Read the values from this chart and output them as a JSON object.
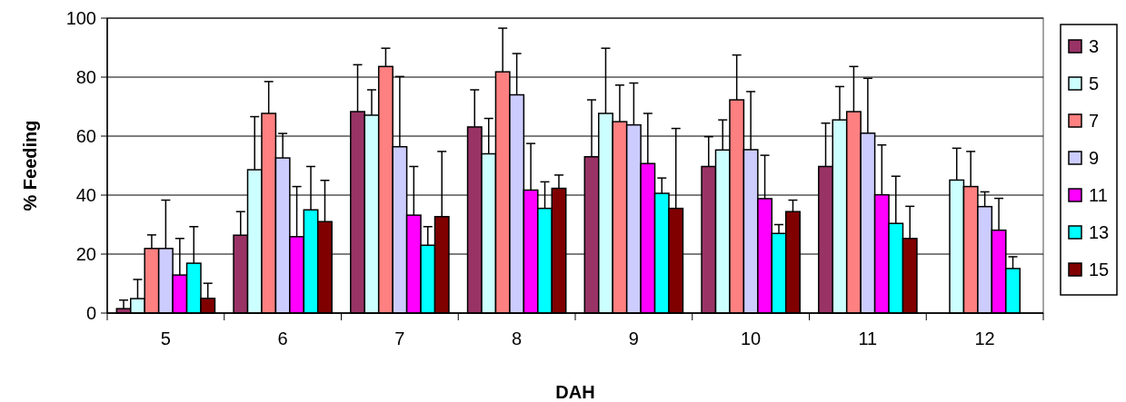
{
  "chart_data": {
    "type": "bar",
    "xlabel": "DAH",
    "ylabel": "% Feeding",
    "categories": [
      "5",
      "6",
      "7",
      "8",
      "9",
      "10",
      "11",
      "12"
    ],
    "ylim": [
      0,
      100
    ],
    "yticks": [
      0,
      20,
      40,
      60,
      80,
      100
    ],
    "grid": "y",
    "legend": "right",
    "series": [
      {
        "name": "3",
        "color": "#993366",
        "values": [
          1.5,
          26.4,
          68.3,
          63.1,
          53,
          49.7,
          49.7,
          null
        ],
        "errors": [
          [
            1.5,
            4.4
          ],
          [
            26.4,
            34.4
          ],
          [
            68.3,
            84.2
          ],
          [
            63.1,
            75.7
          ],
          [
            53,
            72.3
          ],
          [
            49.7,
            59.8
          ],
          [
            49.7,
            64.4
          ],
          null
        ]
      },
      {
        "name": "5",
        "color": "#ccffff",
        "values": [
          4.9,
          48.6,
          67.1,
          54,
          67.7,
          55.3,
          65.5,
          45.1
        ],
        "errors": [
          [
            4.9,
            11.4
          ],
          [
            48.6,
            66.6
          ],
          [
            67.1,
            75.7
          ],
          [
            54,
            66
          ],
          [
            67.7,
            89.8
          ],
          [
            55.3,
            65.5
          ],
          [
            65.5,
            76.8
          ],
          [
            45.1,
            55.9
          ]
        ]
      },
      {
        "name": "7",
        "color": "#ff8080",
        "values": [
          21.9,
          67.7,
          83.6,
          81.8,
          64.9,
          72.3,
          68.3,
          42.9
        ],
        "errors": [
          [
            21.9,
            26.5
          ],
          [
            67.7,
            78.5
          ],
          [
            83.6,
            89.8
          ],
          [
            81.8,
            96.6
          ],
          [
            64.9,
            77.3
          ],
          [
            72.3,
            87.5
          ],
          [
            68.3,
            83.6
          ],
          [
            42.9,
            54.8
          ]
        ]
      },
      {
        "name": "9",
        "color": "#ccccff",
        "values": [
          21.9,
          52.6,
          56.4,
          74,
          63.8,
          55.4,
          61,
          36.1
        ],
        "errors": [
          [
            21.9,
            38.3
          ],
          [
            52.6,
            60.9
          ],
          [
            56.4,
            80.2
          ],
          [
            74,
            88
          ],
          [
            63.8,
            78
          ],
          [
            55.4,
            75.1
          ],
          [
            61,
            79.6
          ],
          [
            36.1,
            41.1
          ]
        ]
      },
      {
        "name": "11",
        "color": "#ff00ff",
        "values": [
          12.9,
          25.9,
          33.2,
          41.7,
          50.7,
          38.8,
          40.1,
          28.1
        ],
        "errors": [
          [
            12.9,
            25.3
          ],
          [
            25.9,
            42.9
          ],
          [
            33.2,
            49.7
          ],
          [
            41.7,
            57.5
          ],
          [
            50.7,
            67.7
          ],
          [
            38.8,
            53.5
          ],
          [
            40.1,
            57
          ],
          [
            28.1,
            38.9
          ]
        ]
      },
      {
        "name": "13",
        "color": "#00ffff",
        "values": [
          16.9,
          35,
          23,
          35.5,
          40.6,
          27,
          30.4,
          15.1
        ],
        "errors": [
          [
            16.9,
            29.3
          ],
          [
            35,
            49.7
          ],
          [
            23,
            29.3
          ],
          [
            35.5,
            44.5
          ],
          [
            40.6,
            45.8
          ],
          [
            27,
            30
          ],
          [
            30.4,
            46.4
          ],
          [
            15.1,
            19.1
          ]
        ]
      },
      {
        "name": "15",
        "color": "#800000",
        "values": [
          5,
          31,
          32.7,
          42.3,
          35.5,
          34.4,
          25.3,
          null
        ],
        "errors": [
          [
            5,
            10.1
          ],
          [
            31,
            45
          ],
          [
            32.7,
            54.8
          ],
          [
            42.3,
            46.8
          ],
          [
            35.5,
            62.6
          ],
          [
            34.4,
            38.3
          ],
          [
            25.3,
            36.2
          ],
          null
        ]
      }
    ]
  }
}
